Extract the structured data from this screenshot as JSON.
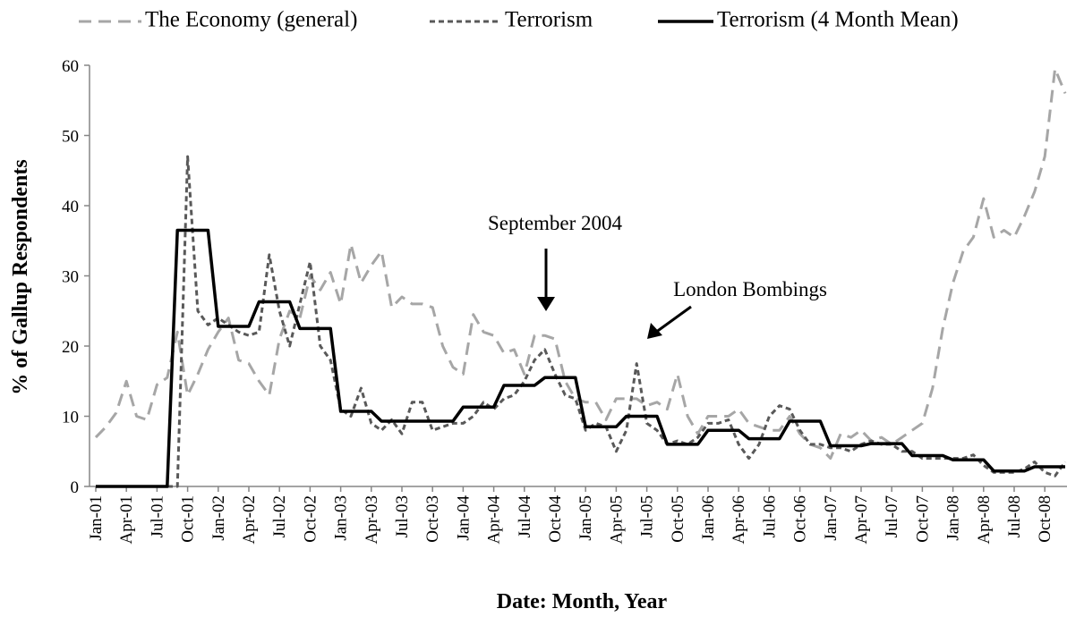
{
  "chart_data": {
    "type": "line",
    "x_label": "Date: Month, Year",
    "y_label": "% of Gallup Respondents",
    "annotations": [
      "September 2004",
      "London Bombings"
    ],
    "ylim": [
      0,
      60
    ],
    "yticks": [
      0,
      10,
      20,
      30,
      40,
      50,
      60
    ],
    "grid": false,
    "legend": "top",
    "categories": [
      "Jan-01",
      null,
      null,
      "Apr-01",
      null,
      null,
      "Jul-01",
      null,
      null,
      "Oct-01",
      null,
      null,
      "Jan-02",
      null,
      null,
      "Apr-02",
      null,
      null,
      "Jul-02",
      null,
      null,
      "Oct-02",
      null,
      null,
      "Jan-03",
      null,
      null,
      "Apr-03",
      null,
      null,
      "Jul-03",
      null,
      null,
      "Oct-03",
      null,
      null,
      "Jan-04",
      null,
      null,
      "Apr-04",
      null,
      null,
      "Jul-04",
      null,
      null,
      "Oct-04",
      null,
      null,
      "Jan-05",
      null,
      null,
      "Apr-05",
      null,
      null,
      "Jul-05",
      null,
      null,
      "Oct-05",
      null,
      null,
      "Jan-06",
      null,
      null,
      "Apr-06",
      null,
      null,
      "Jul-06",
      null,
      null,
      "Oct-06",
      null,
      null,
      "Jan-07",
      null,
      null,
      "Apr-07",
      null,
      null,
      "Jul-07",
      null,
      null,
      "Oct-07",
      null,
      null,
      "Jan-08",
      null,
      null,
      "Apr-08",
      null,
      null,
      "Jul-08",
      null,
      null,
      "Oct-08",
      null,
      null
    ],
    "series": [
      {
        "name": "The Economy (general)",
        "color": "#a6a6a6",
        "style": "dashed",
        "values": [
          7,
          8.5,
          10.5,
          15,
          10,
          9.5,
          14.5,
          15.5,
          22,
          13,
          16,
          19.5,
          22,
          24,
          18,
          17.5,
          15,
          13,
          21,
          25,
          24,
          30,
          28,
          30.5,
          26,
          34.5,
          29,
          31.5,
          33.5,
          25.5,
          27,
          26,
          26,
          25.5,
          20,
          17,
          16,
          24.5,
          22,
          21.5,
          19,
          19.5,
          16,
          21.5,
          21.5,
          21,
          15,
          12.5,
          12,
          12,
          9.5,
          12.5,
          12.5,
          12.5,
          11.5,
          12,
          11,
          16,
          10,
          7.5,
          10,
          10,
          10,
          11,
          9,
          8.5,
          8,
          8,
          10,
          7.5,
          6,
          5.5,
          4,
          7.5,
          7,
          8,
          6.5,
          7,
          6,
          7,
          8,
          9,
          14,
          22.5,
          29,
          33.5,
          35.5,
          41,
          35.5,
          36.5,
          35.5,
          38.5,
          42,
          47,
          59.5,
          56
        ]
      },
      {
        "name": "Terrorism",
        "color": "#595959",
        "style": "dotted",
        "values": [
          0,
          0,
          0,
          0,
          0,
          0,
          0,
          0,
          0,
          47,
          25,
          23,
          24,
          23,
          22,
          21.5,
          22,
          33,
          25,
          20,
          26,
          32,
          20,
          18,
          11,
          10,
          14,
          9,
          8,
          9.5,
          7.5,
          12,
          12,
          8,
          8.5,
          9,
          9,
          10,
          12,
          11,
          12.5,
          13,
          15,
          18,
          19.5,
          16,
          13,
          12.5,
          8,
          9,
          8.5,
          5,
          8,
          17.5,
          9,
          8,
          6,
          6.5,
          6,
          7,
          9,
          9,
          9.5,
          6,
          4,
          6,
          10,
          11.5,
          11,
          8,
          6,
          6,
          5.5,
          5.5,
          5,
          6,
          6.5,
          6,
          6,
          5,
          5,
          4,
          4,
          4,
          4,
          4,
          4.5,
          3,
          2,
          2,
          2,
          2.5,
          3.5,
          2,
          1.5,
          3.5
        ]
      },
      {
        "name": "Terrorism (4 Month Mean)",
        "color": "#000000",
        "style": "solid",
        "values": [
          0,
          0,
          0,
          0,
          0,
          0,
          0,
          0,
          36.5,
          36.5,
          36.5,
          36.5,
          22.8,
          22.8,
          22.8,
          22.8,
          26.3,
          26.3,
          26.3,
          26.3,
          22.5,
          22.5,
          22.5,
          22.5,
          10.7,
          10.7,
          10.7,
          10.7,
          9.3,
          9.3,
          9.3,
          9.3,
          9.3,
          9.3,
          9.3,
          9.3,
          11.3,
          11.3,
          11.3,
          11.3,
          14.4,
          14.4,
          14.4,
          14.4,
          15.5,
          15.5,
          15.5,
          15.5,
          8.5,
          8.5,
          8.5,
          8.5,
          10,
          10,
          10,
          10,
          6,
          6,
          6,
          6,
          8,
          8,
          8,
          8,
          6.8,
          6.8,
          6.8,
          6.8,
          9.3,
          9.3,
          9.3,
          9.3,
          5.8,
          5.8,
          5.8,
          5.8,
          6.1,
          6.1,
          6.1,
          6.1,
          4.4,
          4.4,
          4.4,
          4.4,
          3.8,
          3.8,
          3.8,
          3.8,
          2.2,
          2.2,
          2.2,
          2.2,
          2.8,
          2.8,
          2.8,
          2.8
        ]
      }
    ]
  }
}
